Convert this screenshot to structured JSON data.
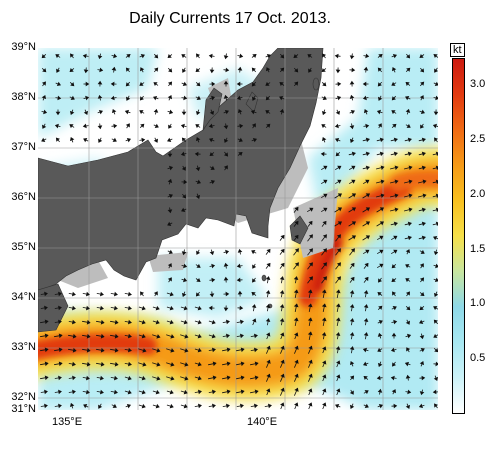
{
  "title": "Daily Currents 17 Oct. 2013.",
  "map": {
    "lat_labels": [
      "39°N",
      "38°N",
      "37°N",
      "36°N",
      "35°N",
      "34°N",
      "33°N",
      "32°N",
      "31°N"
    ],
    "lon_labels": [
      "135°E",
      "140°E"
    ],
    "lat_range": [
      31,
      39
    ],
    "lon_range": [
      134,
      144
    ],
    "colors": {
      "land": "#595959",
      "shallow": "#bdbdbd",
      "ocean_low": "#ffffff"
    }
  },
  "colorbar": {
    "unit": "kt",
    "ticks": [
      "3.0",
      "2.5",
      "2.0",
      "1.5",
      "1.0",
      "0.5"
    ],
    "tick_values": [
      3.0,
      2.5,
      2.0,
      1.5,
      1.0,
      0.5
    ],
    "range": [
      0,
      3.25
    ],
    "colors": [
      "#ffffff",
      "#ccf2f8",
      "#a8e8f2",
      "#8fd9e8",
      "#c8e6a0",
      "#f6e04a",
      "#f8c020",
      "#f59a18",
      "#ef6a14",
      "#e23a10",
      "#cc1a10"
    ]
  }
}
